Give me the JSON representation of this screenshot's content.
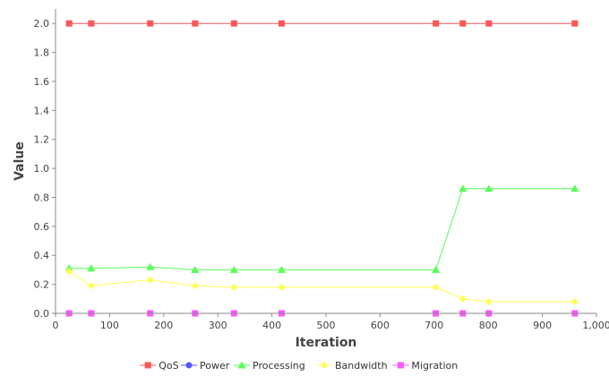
{
  "chart_data": {
    "type": "line",
    "title": "",
    "xlabel": "Iteration",
    "ylabel": "Value",
    "xlim": [
      0,
      1000
    ],
    "ylim": [
      0,
      2.1
    ],
    "xticks": [
      0,
      100,
      200,
      300,
      400,
      500,
      600,
      700,
      800,
      900,
      1000
    ],
    "xtick_labels": [
      "0",
      "100",
      "200",
      "300",
      "400",
      "500",
      "600",
      "700",
      "800",
      "900",
      "1,000"
    ],
    "yticks": [
      0,
      0.2,
      0.4,
      0.6,
      0.8,
      1.0,
      1.2,
      1.4,
      1.6,
      1.8,
      2.0
    ],
    "ytick_labels": [
      "0.0",
      "0.2",
      "0.4",
      "0.6",
      "0.8",
      "1.0",
      "1.2",
      "1.4",
      "1.6",
      "1.8",
      "2.0"
    ],
    "grid": false,
    "legend_position": "bottom",
    "series": [
      {
        "name": "QoS",
        "color": "#ff5555",
        "marker": "square",
        "x": [
          25,
          66,
          175,
          258,
          330,
          418,
          703,
          753,
          801,
          960
        ],
        "y": [
          2.0,
          2.0,
          2.0,
          2.0,
          2.0,
          2.0,
          2.0,
          2.0,
          2.0,
          2.0
        ]
      },
      {
        "name": "Power",
        "color": "#5555ff",
        "marker": "circle",
        "x": [
          25,
          66,
          175,
          258,
          330,
          418,
          703,
          753,
          801,
          960
        ],
        "y": [
          0.0,
          0.0,
          0.0,
          0.0,
          0.0,
          0.0,
          0.0,
          0.0,
          0.0,
          0.0
        ]
      },
      {
        "name": "Processing",
        "color": "#55ff55",
        "marker": "triangle",
        "x": [
          25,
          66,
          175,
          258,
          330,
          418,
          703,
          753,
          801,
          960
        ],
        "y": [
          0.31,
          0.31,
          0.32,
          0.3,
          0.3,
          0.3,
          0.3,
          0.86,
          0.86,
          0.86
        ]
      },
      {
        "name": "Bandwidth",
        "color": "#ffff55",
        "marker": "diamond",
        "x": [
          25,
          66,
          175,
          258,
          330,
          418,
          703,
          753,
          801,
          960
        ],
        "y": [
          0.29,
          0.19,
          0.23,
          0.19,
          0.18,
          0.18,
          0.18,
          0.1,
          0.08,
          0.08
        ]
      },
      {
        "name": "Migration",
        "color": "#ff55ff",
        "marker": "square",
        "x": [
          25,
          66,
          175,
          258,
          330,
          418,
          703,
          753,
          801,
          960
        ],
        "y": [
          0.0,
          0.0,
          0.0,
          0.0,
          0.0,
          0.0,
          0.0,
          0.0,
          0.0,
          0.0
        ]
      }
    ]
  }
}
